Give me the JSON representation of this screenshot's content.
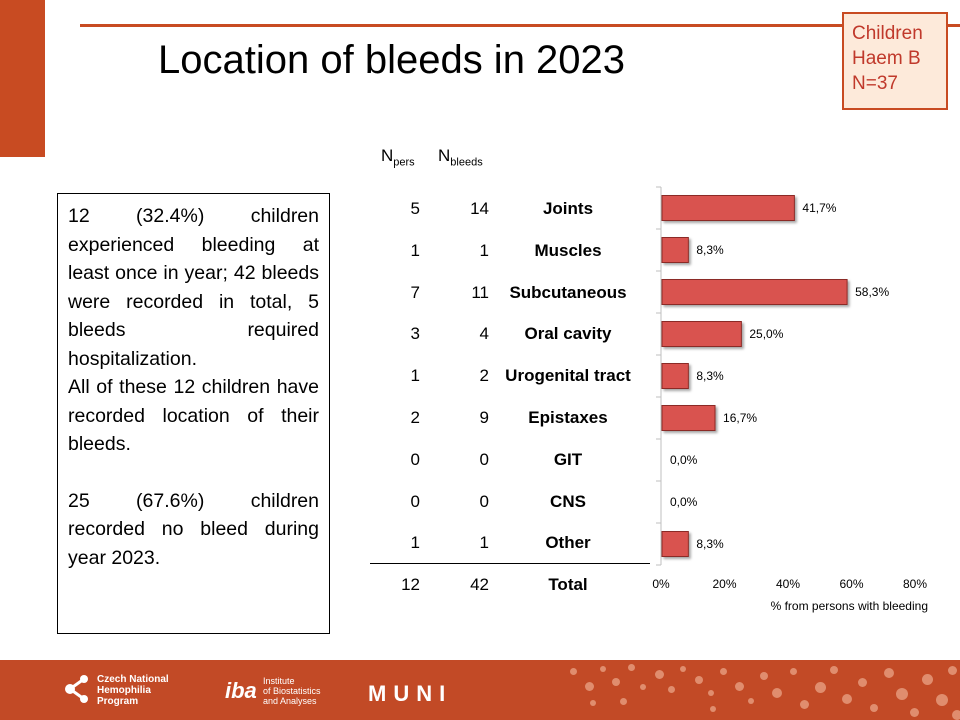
{
  "slide": {
    "title": "Location of bleeds in 2023",
    "badge": [
      "Children",
      "Haem B",
      "N=37"
    ],
    "paragraph1": "12 (32.4%) children experienced bleeding at least once in year; 42 bleeds were recorded in total, 5 bleeds required hospitalization.",
    "paragraph2": "All of these 12 children have recorded location of their bleeds.",
    "paragraph3": "25 (67.6%) children recorded no bleed during year 2023."
  },
  "table": {
    "col1_main": "N",
    "col1_sub": "pers",
    "col2_main": "N",
    "col2_sub": "bleeds",
    "rows": [
      {
        "npers": "5",
        "nbleeds": "14",
        "location": "Joints"
      },
      {
        "npers": "1",
        "nbleeds": "1",
        "location": "Muscles"
      },
      {
        "npers": "7",
        "nbleeds": "11",
        "location": "Subcutaneous"
      },
      {
        "npers": "3",
        "nbleeds": "4",
        "location": "Oral cavity"
      },
      {
        "npers": "1",
        "nbleeds": "2",
        "location": "Urogenital tract"
      },
      {
        "npers": "2",
        "nbleeds": "9",
        "location": "Epistaxes"
      },
      {
        "npers": "0",
        "nbleeds": "0",
        "location": "GIT"
      },
      {
        "npers": "0",
        "nbleeds": "0",
        "location": "CNS"
      },
      {
        "npers": "1",
        "nbleeds": "1",
        "location": "Other"
      }
    ],
    "total": {
      "npers": "12",
      "nbleeds": "42",
      "location": "Total"
    }
  },
  "chart_data": {
    "type": "bar",
    "orientation": "horizontal",
    "categories": [
      "Joints",
      "Muscles",
      "Subcutaneous",
      "Oral cavity",
      "Urogenital tract",
      "Epistaxes",
      "GIT",
      "CNS",
      "Other"
    ],
    "values": [
      41.7,
      8.3,
      58.3,
      25.0,
      8.3,
      16.7,
      0.0,
      0.0,
      8.3
    ],
    "data_labels": [
      "41,7%",
      "8,3%",
      "58,3%",
      "25,0%",
      "8,3%",
      "16,7%",
      "0,0%",
      "0,0%",
      "8,3%"
    ],
    "xlabel": "% from persons with bleeding",
    "xlim": [
      0,
      80
    ],
    "x_ticks": [
      0,
      20,
      40,
      60,
      80
    ],
    "x_tick_labels": [
      "0%",
      "20%",
      "40%",
      "60%",
      "80%"
    ],
    "bar_color": "#d9534f",
    "grid": false
  },
  "footer": {
    "logo1": "Czech National\nHemophilia\nProgram",
    "logo2_mark": "iba",
    "logo2": "Institute\nof Biostatistics\nand Analyses",
    "logo3": "MUNI"
  }
}
